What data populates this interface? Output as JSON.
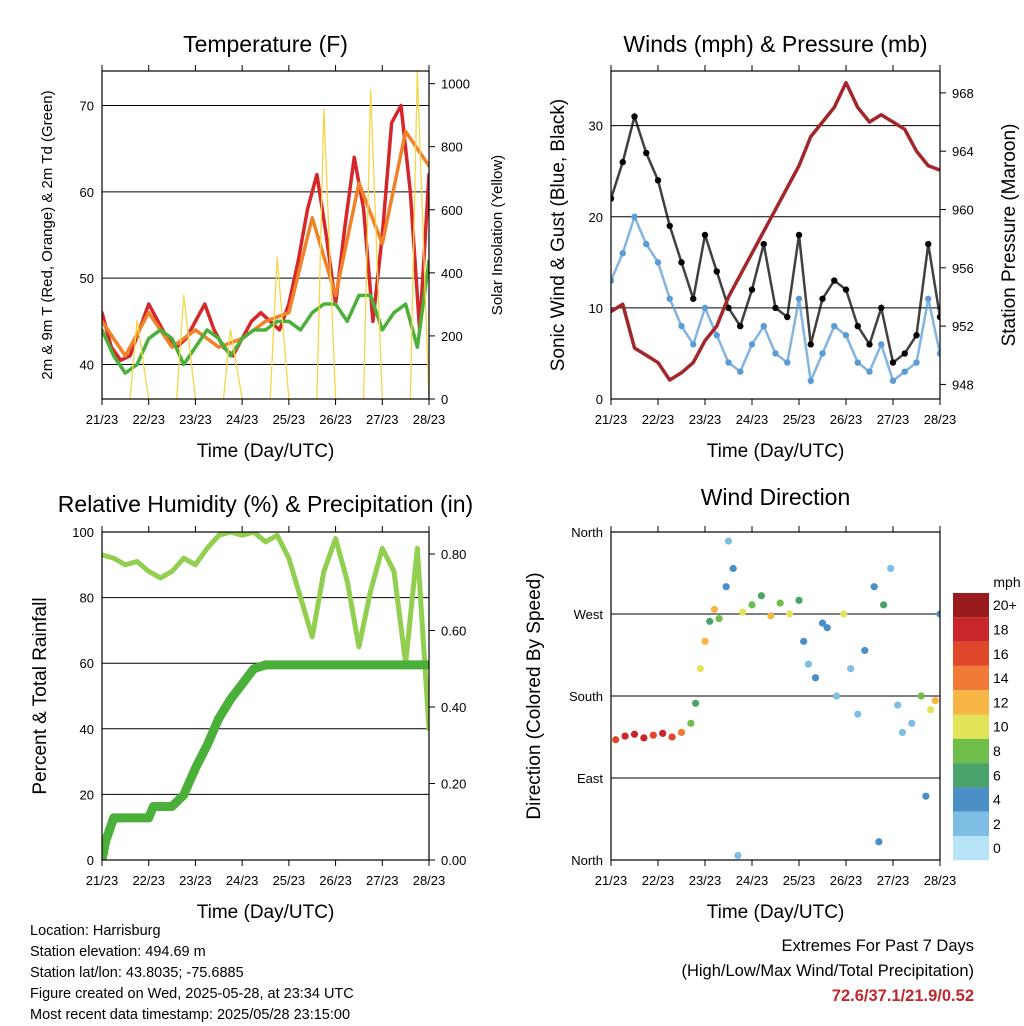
{
  "chart_data": [
    {
      "type": "line",
      "title": "Temperature (F)",
      "xlabel": "Time (Day/UTC)",
      "ylabel": "2m & 9m T (Red, Orange) & 2m Td (Green)",
      "y2label": "Solar Insolation (Yellow)",
      "x_ticks": [
        "21/23",
        "22/23",
        "23/23",
        "24/23",
        "25/23",
        "26/23",
        "27/23",
        "28/23"
      ],
      "ylim": [
        36,
        74
      ],
      "y_ticks": [
        40,
        50,
        60,
        70
      ],
      "y2lim": [
        0,
        1040
      ],
      "y2_ticks": [
        0,
        200,
        400,
        600,
        800,
        1000
      ],
      "grid": "horizontal",
      "series": [
        {
          "name": "2m T",
          "color": "#d7262a",
          "x": [
            0,
            0.2,
            0.4,
            0.6,
            0.8,
            1.0,
            1.2,
            1.4,
            1.6,
            1.8,
            2.0,
            2.2,
            2.4,
            2.6,
            2.8,
            3.0,
            3.2,
            3.4,
            3.6,
            3.8,
            4.0,
            4.2,
            4.4,
            4.6,
            4.8,
            5.0,
            5.2,
            5.4,
            5.6,
            5.8,
            6.0,
            6.2,
            6.4,
            6.6,
            6.8,
            7.0
          ],
          "values": [
            46,
            42,
            40.5,
            41,
            44,
            47,
            45,
            43,
            42,
            43,
            45,
            47,
            44,
            42,
            41,
            43,
            45,
            46,
            45,
            44,
            47,
            52,
            58,
            62,
            55,
            47,
            56,
            64,
            58,
            45,
            55,
            68,
            70,
            60,
            44,
            62
          ]
        },
        {
          "name": "9m T",
          "color": "#f0822a",
          "x": [
            0,
            0.5,
            1.0,
            1.5,
            2.0,
            2.5,
            3.0,
            3.5,
            4.0,
            4.5,
            5.0,
            5.5,
            6.0,
            6.5,
            7.0
          ],
          "values": [
            45,
            41,
            46,
            42,
            44,
            42,
            43,
            45,
            46,
            57,
            48,
            61,
            54,
            67,
            63
          ]
        },
        {
          "name": "2m Td",
          "color": "#4bb03a",
          "x": [
            0,
            0.25,
            0.5,
            0.75,
            1.0,
            1.25,
            1.5,
            1.75,
            2.0,
            2.25,
            2.5,
            2.75,
            3.0,
            3.25,
            3.5,
            3.75,
            4.0,
            4.25,
            4.5,
            4.75,
            5.0,
            5.25,
            5.5,
            5.75,
            6.0,
            6.25,
            6.5,
            6.75,
            7.0
          ],
          "values": [
            44,
            41,
            39,
            40,
            43,
            44,
            43,
            40,
            42,
            44,
            43,
            41,
            43,
            44,
            44,
            45,
            45,
            44,
            46,
            47,
            47,
            45,
            48,
            48,
            44,
            46,
            47,
            42,
            52
          ]
        },
        {
          "name": "Solar Insolation",
          "color": "#f5d64a",
          "axis": "right",
          "x": [
            0,
            0.6,
            0.75,
            1.0,
            1.6,
            1.75,
            2.0,
            2.6,
            2.75,
            3.0,
            3.6,
            3.75,
            4.0,
            4.6,
            4.75,
            5.0,
            5.6,
            5.75,
            6.0,
            6.6,
            6.75,
            7.0
          ],
          "values": [
            0,
            0,
            250,
            0,
            0,
            330,
            0,
            0,
            220,
            0,
            0,
            450,
            0,
            0,
            920,
            0,
            0,
            980,
            0,
            0,
            1040,
            0
          ]
        }
      ]
    },
    {
      "type": "scatter",
      "title": "Winds (mph) & Pressure (mb)",
      "xlabel": "Time (Day/UTC)",
      "ylabel": "Sonic Wind & Gust (Blue, Black)",
      "y2label": "Station Pressure (Maroon)",
      "x_ticks": [
        "21/23",
        "22/23",
        "23/23",
        "24/23",
        "25/23",
        "26/23",
        "27/23",
        "28/23"
      ],
      "ylim": [
        0,
        36
      ],
      "y_ticks": [
        0,
        10,
        20,
        30
      ],
      "y2lim": [
        947,
        969.5
      ],
      "y2_ticks": [
        948,
        952,
        956,
        960,
        964,
        968
      ],
      "grid": "horizontal",
      "series": [
        {
          "name": "Gust",
          "color": "#000000",
          "x": [
            0,
            0.25,
            0.5,
            0.75,
            1.0,
            1.25,
            1.5,
            1.75,
            2.0,
            2.25,
            2.5,
            2.75,
            3.0,
            3.25,
            3.5,
            3.75,
            4.0,
            4.25,
            4.5,
            4.75,
            5.0,
            5.25,
            5.5,
            5.75,
            6.0,
            6.25,
            6.5,
            6.75,
            7.0
          ],
          "values": [
            22,
            26,
            31,
            27,
            24,
            19,
            15,
            11,
            18,
            14,
            10,
            8,
            12,
            17,
            10,
            9,
            18,
            6,
            11,
            13,
            12,
            8,
            6,
            10,
            4,
            5,
            7,
            17,
            9
          ]
        },
        {
          "name": "Sonic Wind",
          "color": "#5b9bd5",
          "x": [
            0,
            0.25,
            0.5,
            0.75,
            1.0,
            1.25,
            1.5,
            1.75,
            2.0,
            2.25,
            2.5,
            2.75,
            3.0,
            3.25,
            3.5,
            3.75,
            4.0,
            4.25,
            4.5,
            4.75,
            5.0,
            5.25,
            5.5,
            5.75,
            6.0,
            6.25,
            6.5,
            6.75,
            7.0
          ],
          "values": [
            13,
            16,
            20,
            17,
            15,
            11,
            8,
            6,
            10,
            7,
            4,
            3,
            6,
            8,
            5,
            4,
            11,
            2,
            5,
            8,
            7,
            4,
            3,
            6,
            2,
            3,
            4,
            11,
            5
          ]
        },
        {
          "name": "Station Pressure",
          "color": "#a3262a",
          "axis": "right",
          "x": [
            0,
            0.25,
            0.5,
            0.75,
            1.0,
            1.25,
            1.5,
            1.75,
            2.0,
            2.25,
            2.5,
            2.75,
            3.0,
            3.25,
            3.5,
            3.75,
            4.0,
            4.25,
            4.5,
            4.75,
            5.0,
            5.25,
            5.5,
            5.75,
            6.0,
            6.25,
            6.5,
            6.75,
            7.0
          ],
          "values": [
            953,
            953.5,
            950.5,
            950,
            949.5,
            948.3,
            948.8,
            949.5,
            951,
            952,
            954,
            955.5,
            957,
            958.5,
            960,
            961.5,
            963,
            965,
            966,
            967,
            968.7,
            967,
            966,
            966.5,
            966,
            965.5,
            964,
            963,
            962.7
          ]
        }
      ]
    },
    {
      "type": "line",
      "title": "Relative Humidity (%) & Precipitation (in)",
      "xlabel": "Time (Day/UTC)",
      "ylabel": "Percent & Total Rainfall",
      "x_ticks": [
        "21/23",
        "22/23",
        "23/23",
        "24/23",
        "25/23",
        "26/23",
        "27/23",
        "28/23"
      ],
      "ylim": [
        0,
        100
      ],
      "y_ticks": [
        0,
        20,
        40,
        60,
        80,
        100
      ],
      "y2lim": [
        0,
        0.8575
      ],
      "y2_ticks": [
        "0.00",
        "0.20",
        "0.40",
        "0.60",
        "0.80"
      ],
      "grid": "horizontal",
      "series": [
        {
          "name": "Relative Humidity",
          "color": "#92cf50",
          "x": [
            0,
            0.25,
            0.5,
            0.75,
            1.0,
            1.25,
            1.5,
            1.75,
            2.0,
            2.25,
            2.5,
            2.75,
            3.0,
            3.25,
            3.5,
            3.75,
            4.0,
            4.25,
            4.5,
            4.75,
            5.0,
            5.25,
            5.5,
            5.75,
            6.0,
            6.25,
            6.5,
            6.75,
            7.0
          ],
          "values": [
            93,
            92,
            90,
            91,
            88,
            86,
            88,
            92,
            90,
            95,
            99,
            100,
            99,
            100,
            97,
            99,
            92,
            80,
            68,
            88,
            98,
            85,
            65,
            82,
            95,
            88,
            60,
            95,
            40
          ]
        },
        {
          "name": "Total Rainfall",
          "color": "#4bb03a",
          "axis": "right",
          "x": [
            0,
            0.08,
            0.25,
            1.0,
            1.1,
            1.5,
            1.75,
            2.0,
            2.25,
            2.5,
            2.75,
            3.0,
            3.25,
            3.5,
            3.75,
            4.0,
            4.25,
            4.5,
            5.0,
            6.0,
            7.0
          ],
          "values": [
            0,
            0.05,
            0.11,
            0.11,
            0.14,
            0.14,
            0.17,
            0.24,
            0.3,
            0.37,
            0.42,
            0.46,
            0.5,
            0.51,
            0.51,
            0.51,
            0.51,
            0.51,
            0.51,
            0.51,
            0.51
          ]
        }
      ]
    },
    {
      "type": "scatter",
      "title": "Wind Direction",
      "xlabel": "Time (Day/UTC)",
      "ylabel": "Direction (Colored By Speed)",
      "x_ticks": [
        "21/23",
        "22/23",
        "23/23",
        "24/23",
        "25/23",
        "26/23",
        "27/23",
        "28/23"
      ],
      "y_ticks": [
        "North",
        "East",
        "South",
        "West",
        "North"
      ],
      "ylim": [
        0,
        360
      ],
      "colorbar": {
        "title": "mph",
        "labels": [
          "0",
          "2",
          "4",
          "6",
          "8",
          "10",
          "12",
          "14",
          "16",
          "18",
          "20+"
        ],
        "colors": [
          "#b8e4f7",
          "#7ebde4",
          "#4a8fc5",
          "#4aa36a",
          "#6fbd4a",
          "#e3e35a",
          "#f7b545",
          "#f07a36",
          "#e0462a",
          "#c7262a",
          "#981b1d"
        ]
      },
      "points": [
        {
          "x": 0.1,
          "y": 132,
          "s": 16
        },
        {
          "x": 0.3,
          "y": 136,
          "s": 18
        },
        {
          "x": 0.5,
          "y": 138,
          "s": 18
        },
        {
          "x": 0.7,
          "y": 134,
          "s": 19
        },
        {
          "x": 0.9,
          "y": 137,
          "s": 17
        },
        {
          "x": 1.1,
          "y": 139,
          "s": 18
        },
        {
          "x": 1.3,
          "y": 135,
          "s": 16
        },
        {
          "x": 1.5,
          "y": 140,
          "s": 14
        },
        {
          "x": 1.7,
          "y": 150,
          "s": 9
        },
        {
          "x": 1.8,
          "y": 172,
          "s": 7
        },
        {
          "x": 1.9,
          "y": 210,
          "s": 11
        },
        {
          "x": 2.0,
          "y": 240,
          "s": 13
        },
        {
          "x": 2.1,
          "y": 262,
          "s": 7
        },
        {
          "x": 2.2,
          "y": 275,
          "s": 12
        },
        {
          "x": 2.3,
          "y": 265,
          "s": 8
        },
        {
          "x": 2.45,
          "y": 300,
          "s": 4
        },
        {
          "x": 2.5,
          "y": 350,
          "s": 3
        },
        {
          "x": 2.6,
          "y": 320,
          "s": 5
        },
        {
          "x": 2.7,
          "y": 5,
          "s": 3
        },
        {
          "x": 2.8,
          "y": 272,
          "s": 10
        },
        {
          "x": 3.0,
          "y": 280,
          "s": 9
        },
        {
          "x": 3.2,
          "y": 290,
          "s": 7
        },
        {
          "x": 3.4,
          "y": 268,
          "s": 12
        },
        {
          "x": 3.6,
          "y": 282,
          "s": 8
        },
        {
          "x": 3.8,
          "y": 270,
          "s": 11
        },
        {
          "x": 4.0,
          "y": 285,
          "s": 6
        },
        {
          "x": 4.1,
          "y": 240,
          "s": 4
        },
        {
          "x": 4.2,
          "y": 215,
          "s": 3
        },
        {
          "x": 4.35,
          "y": 200,
          "s": 4
        },
        {
          "x": 4.5,
          "y": 260,
          "s": 5
        },
        {
          "x": 4.6,
          "y": 255,
          "s": 4
        },
        {
          "x": 4.8,
          "y": 180,
          "s": 3
        },
        {
          "x": 4.95,
          "y": 270,
          "s": 10
        },
        {
          "x": 5.1,
          "y": 210,
          "s": 2
        },
        {
          "x": 5.25,
          "y": 160,
          "s": 3
        },
        {
          "x": 5.4,
          "y": 230,
          "s": 4
        },
        {
          "x": 5.6,
          "y": 300,
          "s": 5
        },
        {
          "x": 5.7,
          "y": 20,
          "s": 4
        },
        {
          "x": 5.8,
          "y": 280,
          "s": 6
        },
        {
          "x": 5.95,
          "y": 320,
          "s": 3
        },
        {
          "x": 6.1,
          "y": 170,
          "s": 2
        },
        {
          "x": 6.2,
          "y": 140,
          "s": 2
        },
        {
          "x": 6.4,
          "y": 150,
          "s": 3
        },
        {
          "x": 6.6,
          "y": 180,
          "s": 8
        },
        {
          "x": 6.7,
          "y": 70,
          "s": 5
        },
        {
          "x": 6.8,
          "y": 165,
          "s": 10
        },
        {
          "x": 6.9,
          "y": 175,
          "s": 12
        },
        {
          "x": 7.0,
          "y": 270,
          "s": 4
        }
      ]
    }
  ],
  "footer": {
    "location": "Location: Harrisburg",
    "elevation": "Station elevation: 494.69 m",
    "latlon": "Station lat/lon: 43.8035; -75.6885",
    "created": "Figure created on Wed, 2025-05-28, at 23:34 UTC",
    "recent": "Most recent data timestamp: 2025/05/28 23:15:00"
  },
  "extremes": {
    "title": "Extremes For Past 7 Days",
    "subtitle": "(High/Low/Max Wind/Total Precipitation)",
    "values": "72.6/37.1/21.9/0.52"
  }
}
